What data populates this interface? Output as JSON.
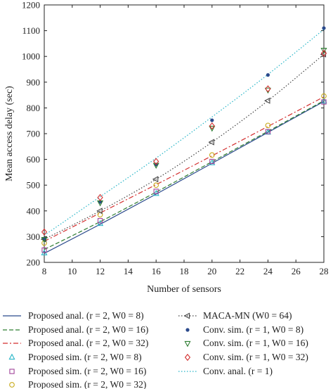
{
  "chart_data": {
    "type": "line",
    "xlabel": "Number of sensors",
    "ylabel": "Mean access delay (sec)",
    "xlim": [
      8,
      28
    ],
    "ylim": [
      200,
      1200
    ],
    "xticks": [
      "8",
      "10",
      "12",
      "14",
      "16",
      "18",
      "20",
      "22",
      "24",
      "26",
      "28"
    ],
    "yticks": [
      "200",
      "300",
      "400",
      "500",
      "600",
      "700",
      "800",
      "900",
      "1000",
      "1100",
      "1200"
    ],
    "grid": false,
    "legend_placement": "bottom",
    "series": [
      {
        "name": "Proposed anal. (r = 2, W0 = 8)",
        "style": "solid",
        "color": "#2b4a8c",
        "x": [
          8,
          12,
          16,
          20,
          24,
          28
        ],
        "y": [
          235,
          348,
          465,
          585,
          705,
          825
        ]
      },
      {
        "name": "Proposed anal. (r = 2, W0 = 16)",
        "style": "dashed",
        "color": "#2e7d32",
        "x": [
          8,
          12,
          16,
          20,
          24,
          28
        ],
        "y": [
          250,
          358,
          473,
          591,
          709,
          828
        ]
      },
      {
        "name": "Proposed anal. (r = 2, W0 = 32)",
        "style": "dashdot",
        "color": "#d32f2f",
        "x": [
          8,
          12,
          16,
          20,
          24,
          28
        ],
        "y": [
          282,
          392,
          502,
          614,
          728,
          843
        ]
      },
      {
        "name": "Proposed sim. (r = 2, W0 = 8)",
        "marker": "triangle-up",
        "color": "#26b5c7",
        "x": [
          8,
          12,
          16,
          20,
          24,
          28
        ],
        "y": [
          236,
          350,
          467,
          586,
          705,
          826
        ]
      },
      {
        "name": "Proposed sim. (r = 2, W0 = 16)",
        "marker": "square",
        "color": "#a0449a",
        "x": [
          8,
          12,
          16,
          20,
          24,
          28
        ],
        "y": [
          248,
          362,
          476,
          592,
          708,
          823
        ]
      },
      {
        "name": "Proposed sim. (r = 2, W0 = 32)",
        "marker": "circle-open",
        "color": "#c8aa18",
        "x": [
          8,
          12,
          16,
          20,
          24,
          28
        ],
        "y": [
          275,
          385,
          500,
          617,
          732,
          846
        ]
      },
      {
        "name": "MACA-MN (W0 = 64)",
        "style": "dotted",
        "marker": "triangle-left",
        "color": "#444444",
        "x": [
          8,
          12,
          16,
          20,
          24,
          28
        ],
        "y": [
          290,
          400,
          523,
          667,
          828,
          1008
        ]
      },
      {
        "name": "Conv. sim. (r = 1, W0 = 8)",
        "marker": "dot",
        "color": "#2b4a8c",
        "x": [
          8,
          12,
          16,
          20,
          24,
          28
        ],
        "y": [
          292,
          435,
          580,
          752,
          928,
          1110
        ]
      },
      {
        "name": "Conv. sim. (r = 1, W0 = 16)",
        "marker": "triangle-down",
        "color": "#2e7d32",
        "x": [
          8,
          12,
          16,
          20,
          24,
          28
        ],
        "y": [
          290,
          432,
          578,
          722,
          870,
          1025
        ]
      },
      {
        "name": "Conv. sim. (r = 1, W0 = 32)",
        "marker": "diamond",
        "color": "#d32f2f",
        "x": [
          8,
          12,
          16,
          20,
          24,
          28
        ],
        "y": [
          318,
          452,
          592,
          730,
          874,
          1012
        ]
      },
      {
        "name": "Conv. anal. (r = 1)",
        "style": "dotted",
        "color": "#26b5c7",
        "x": [
          8,
          12,
          16,
          20,
          24,
          28
        ],
        "y": [
          305,
          455,
          605,
          765,
          930,
          1105
        ]
      }
    ]
  },
  "legend": {
    "left": [
      "Proposed anal. (r = 2, W0 = 8)",
      "Proposed anal. (r = 2, W0 = 16)",
      "Proposed anal. (r = 2, W0 = 32)",
      "Proposed sim. (r = 2, W0 = 8)",
      "Proposed sim. (r = 2, W0 = 16)",
      "Proposed sim. (r = 2, W0 = 32)"
    ],
    "right": [
      "MACA-MN (W0 = 64)",
      "Conv. sim. (r = 1, W0 = 8)",
      "Conv. sim. (r = 1, W0 = 16)",
      "Conv. sim. (r = 1, W0 = 32)",
      "Conv. anal. (r = 1)"
    ]
  }
}
